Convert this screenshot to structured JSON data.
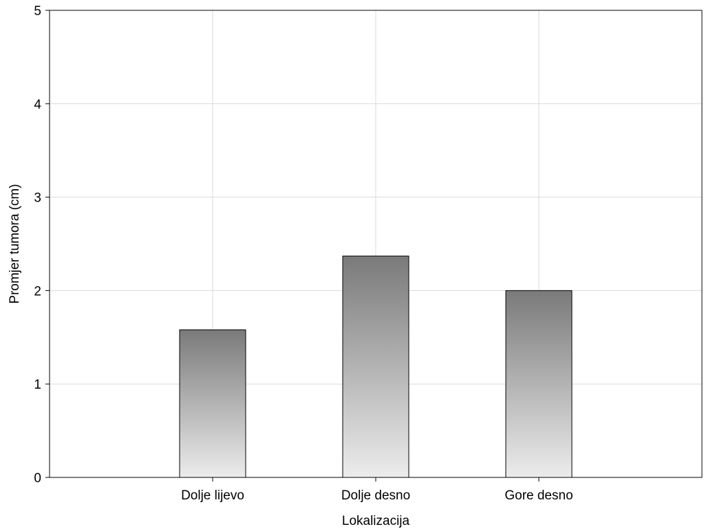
{
  "chart_data": {
    "type": "bar",
    "title": "",
    "xlabel": "Lokalizacija",
    "ylabel": "Promjer tumora (cm)",
    "categories": [
      "Dolje lijevo",
      "Dolje desno",
      "Gore desno"
    ],
    "values": [
      1.58,
      2.37,
      2.0
    ],
    "ylim": [
      0,
      5
    ],
    "yticks": [
      "0",
      "1",
      "2",
      "3",
      "4",
      "5"
    ],
    "grid": true,
    "legend": "none",
    "colors": {
      "bar_top": "#7a7a7a",
      "bar_bottom": "#ececec",
      "grid": "#d9d9d9",
      "axis": "#000000"
    }
  }
}
